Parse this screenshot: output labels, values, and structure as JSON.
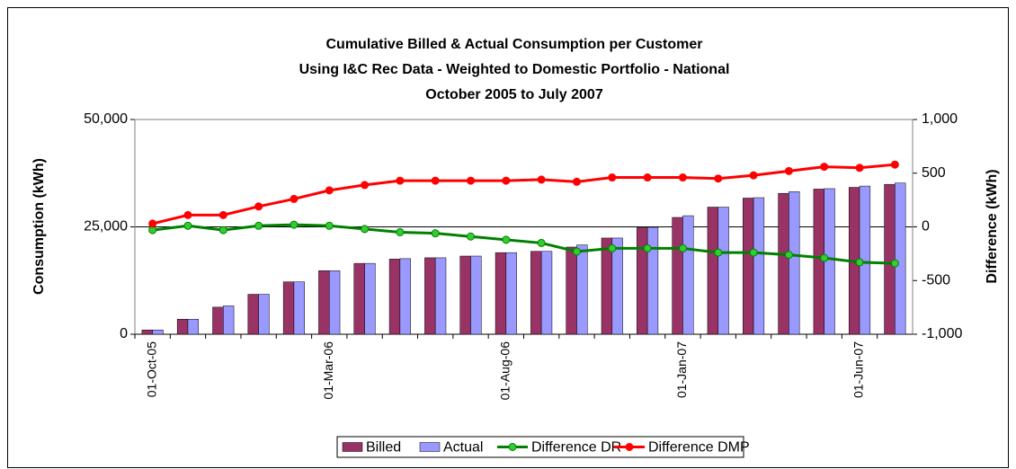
{
  "chart_data": {
    "type": "bar",
    "title": [
      "Cumulative Billed & Actual  Consumption per Customer",
      "Using I&C Rec Data - Weighted to Domestic Portfolio - National",
      "October 2005 to July 2007"
    ],
    "ylabel": "Consumption (kWh)",
    "y2label": "Difference (kWh)",
    "categories": [
      "01-Oct-05",
      null,
      null,
      null,
      null,
      "01-Mar-06",
      null,
      null,
      null,
      null,
      "01-Aug-06",
      null,
      null,
      null,
      null,
      "01-Jan-07",
      null,
      null,
      null,
      null,
      "01-Jun-07",
      null
    ],
    "series": [
      {
        "name": "Billed",
        "type": "bar",
        "color": "#993366",
        "values": [
          1000,
          3500,
          6300,
          9300,
          12200,
          14800,
          16500,
          17500,
          17800,
          18200,
          19000,
          19300,
          20300,
          22400,
          24800,
          27200,
          29600,
          31700,
          32800,
          33800,
          34200,
          34900
        ]
      },
      {
        "name": "Actual",
        "type": "bar",
        "color": "#9999ff",
        "values": [
          1000,
          3500,
          6600,
          9300,
          12200,
          14800,
          16500,
          17600,
          17800,
          18200,
          19000,
          19300,
          20800,
          22400,
          24900,
          27600,
          29600,
          31800,
          33200,
          33900,
          34500,
          35200
        ]
      },
      {
        "name": "Difference DR",
        "type": "line",
        "axis": "y2",
        "color": "#008000",
        "marker_color": "#33cc33",
        "values": [
          -30,
          10,
          -30,
          10,
          20,
          10,
          -20,
          -50,
          -60,
          -90,
          -120,
          -150,
          -230,
          -200,
          -200,
          -200,
          -240,
          -240,
          -260,
          -290,
          -330,
          -340
        ]
      },
      {
        "name": "Difference DMP",
        "type": "line",
        "axis": "y2",
        "color": "#ff0000",
        "marker_color": "#ff0000",
        "values": [
          30,
          110,
          110,
          190,
          260,
          340,
          390,
          430,
          430,
          430,
          430,
          440,
          420,
          460,
          460,
          460,
          450,
          480,
          520,
          560,
          550,
          580
        ]
      }
    ],
    "ylim": [
      0,
      50000
    ],
    "yticks": [
      0,
      {
        "value": 25000,
        "label": "25,000"
      },
      {
        "value": 50000,
        "label": "50,000"
      }
    ],
    "y2lim": [
      -1000,
      1000
    ],
    "y2ticks": [
      {
        "value": -1000,
        "label": "-1,000"
      },
      -500,
      0,
      500,
      {
        "value": 1000,
        "label": "1,000"
      }
    ],
    "grid": true,
    "legend": "bottom"
  }
}
